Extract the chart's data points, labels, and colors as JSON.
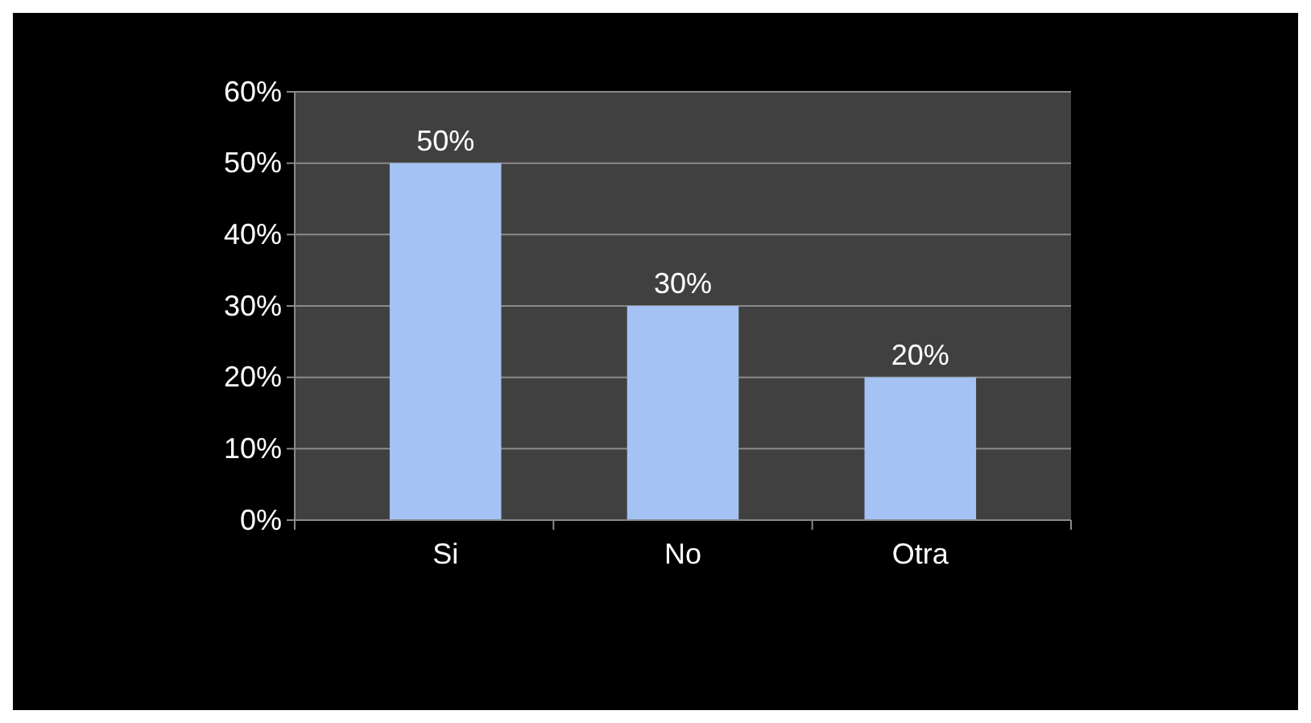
{
  "chart_data": {
    "type": "bar",
    "categories": [
      "Si",
      "No",
      "Otra"
    ],
    "values": [
      50,
      30,
      20
    ],
    "color": "#a4c2f4",
    "value_labels": [
      "50%",
      "30%",
      "20%"
    ],
    "ylim": [
      0,
      60
    ],
    "yticks": [
      {
        "value": 0,
        "label": "0%"
      },
      {
        "value": 10,
        "label": "10%"
      },
      {
        "value": 20,
        "label": "20%"
      },
      {
        "value": 30,
        "label": "30%"
      },
      {
        "value": 40,
        "label": "40%"
      },
      {
        "value": 50,
        "label": "50%"
      },
      {
        "value": 60,
        "label": "60%"
      }
    ],
    "grid": "y"
  }
}
